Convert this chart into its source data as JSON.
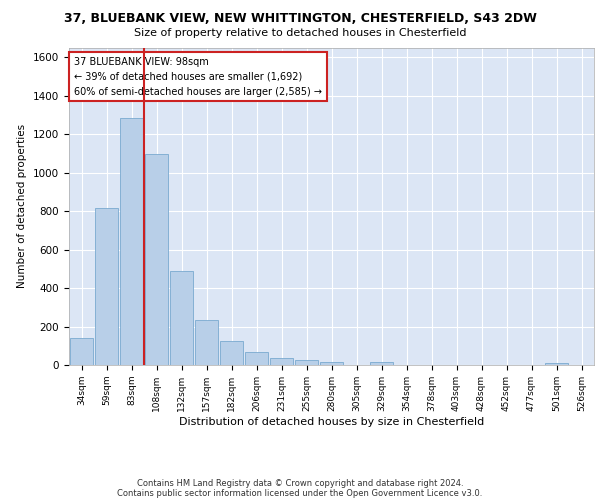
{
  "title1": "37, BLUEBANK VIEW, NEW WHITTINGTON, CHESTERFIELD, S43 2DW",
  "title2": "Size of property relative to detached houses in Chesterfield",
  "xlabel": "Distribution of detached houses by size in Chesterfield",
  "ylabel": "Number of detached properties",
  "footer1": "Contains HM Land Registry data © Crown copyright and database right 2024.",
  "footer2": "Contains public sector information licensed under the Open Government Licence v3.0.",
  "annotation_title": "37 BLUEBANK VIEW: 98sqm",
  "annotation_line1": "← 39% of detached houses are smaller (1,692)",
  "annotation_line2": "60% of semi-detached houses are larger (2,585) →",
  "bar_color": "#b8cfe8",
  "bar_edge_color": "#7aaad0",
  "highlight_color": "#cc2222",
  "red_line_x": 2.5,
  "categories": [
    "34sqm",
    "59sqm",
    "83sqm",
    "108sqm",
    "132sqm",
    "157sqm",
    "182sqm",
    "206sqm",
    "231sqm",
    "255sqm",
    "280sqm",
    "305sqm",
    "329sqm",
    "354sqm",
    "378sqm",
    "403sqm",
    "428sqm",
    "452sqm",
    "477sqm",
    "501sqm",
    "526sqm"
  ],
  "values": [
    140,
    815,
    1285,
    1095,
    490,
    235,
    125,
    65,
    38,
    27,
    18,
    0,
    18,
    0,
    0,
    0,
    0,
    0,
    0,
    12,
    0
  ],
  "ylim": [
    0,
    1650
  ],
  "yticks": [
    0,
    200,
    400,
    600,
    800,
    1000,
    1200,
    1400,
    1600
  ],
  "bg_color": "#dce6f5",
  "fig_bg": "#ffffff",
  "grid_color": "#ffffff"
}
